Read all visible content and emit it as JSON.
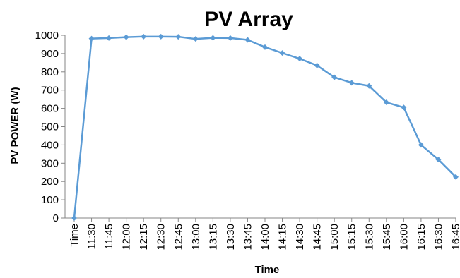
{
  "chart_data": {
    "type": "line",
    "title": "PV Array",
    "xlabel": "Time",
    "ylabel": "PV POWER (W)",
    "ylim": [
      0,
      1000
    ],
    "yticks": [
      0,
      100,
      200,
      300,
      400,
      500,
      600,
      700,
      800,
      900,
      1000
    ],
    "grid": false,
    "legend": "none",
    "categories": [
      "Time",
      "11:30",
      "11:45",
      "12:00",
      "12:15",
      "12:30",
      "12:45",
      "13:00",
      "13:15",
      "13:30",
      "13:45",
      "14:00",
      "14:15",
      "14:30",
      "14:45",
      "15:00",
      "15:15",
      "15:30",
      "15:45",
      "16:00",
      "16:15",
      "16:30",
      "16:45"
    ],
    "series": [
      {
        "values": [
          0,
          982,
          985,
          990,
          993,
          993,
          992,
          980,
          986,
          985,
          975,
          935,
          903,
          872,
          835,
          770,
          740,
          723,
          633,
          605,
          400,
          320,
          225
        ]
      }
    ],
    "line_color": "#5B9BD5",
    "axis_color": "#868686"
  }
}
